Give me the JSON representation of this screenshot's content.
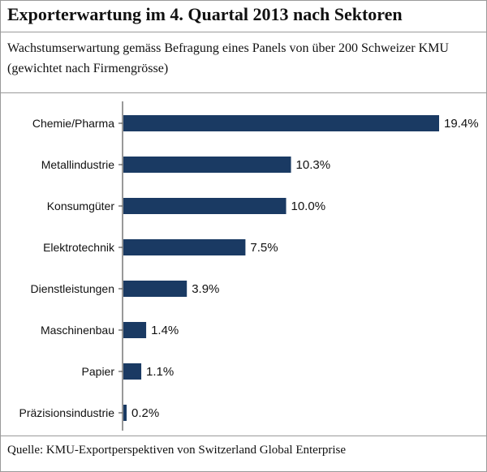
{
  "title": "Exporterwartung im 4. Quartal 2013 nach Sektoren",
  "subtitle": "Wachstumserwartung gemäss Befragung eines Panels von über 200 Schweizer KMU (gewichtet nach Firmengrösse)",
  "source": "Quelle: KMU-Exportperspektiven von Switzerland Global Enterprise",
  "colors": {
    "bar": "#1a3a63",
    "axis": "#333333",
    "rule": "#9a9a9a"
  },
  "chart_data": {
    "type": "bar",
    "orientation": "horizontal",
    "categories": [
      "Chemie/Pharma",
      "Metallindustrie",
      "Konsumgüter",
      "Elektrotechnik",
      "Dienstleistungen",
      "Maschinenbau",
      "Papier",
      "Präzisionsindustrie"
    ],
    "values": [
      19.4,
      10.3,
      10.0,
      7.5,
      3.9,
      1.4,
      1.1,
      0.2
    ],
    "value_labels": [
      "19.4%",
      "10.3%",
      "10.0%",
      "7.5%",
      "3.9%",
      "1.4%",
      "1.1%",
      "0.2%"
    ],
    "unit": "%",
    "xlim": [
      0,
      19.4
    ],
    "grid": false
  }
}
